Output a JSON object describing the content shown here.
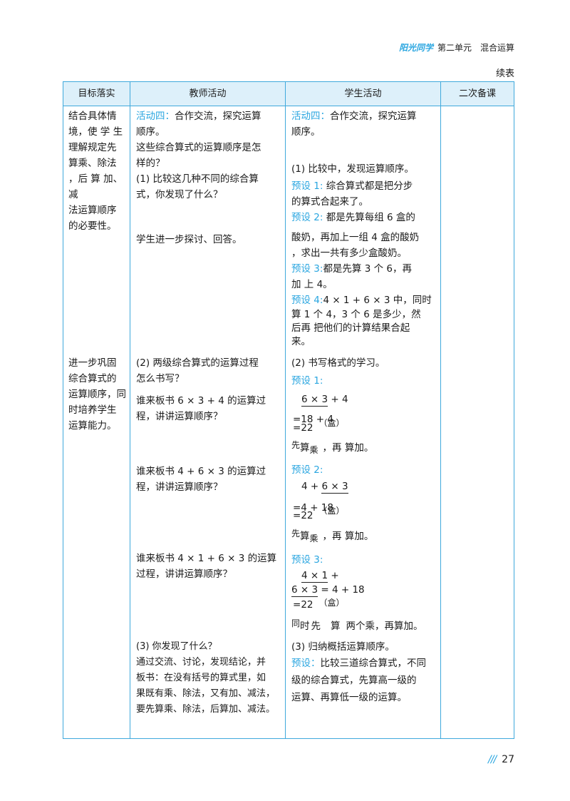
{
  "header": {
    "logo": "阳光同学",
    "title": "第二单元　混合运算"
  },
  "continued": "续表",
  "table": {
    "headers": [
      "目标落实",
      "教师活动",
      "学生活动",
      "二次备课"
    ],
    "goal1": [
      "结合具体情",
      "境，使 学 生",
      "理解规定先",
      "算乘、除法",
      "，后 算 加、",
      "减",
      "法运算顺序",
      "的必要性。"
    ],
    "goal2": [
      "进一步巩固",
      "综合算式的",
      "运算顺序，同",
      "时培养学生",
      "运算能力。"
    ],
    "teacher": {
      "act4_label": "活动四：",
      "act4_rest": "合作交流，探究运算",
      "act4_line2": "顺序。",
      "q_lines": [
        "这些综合算式的运算顺序是怎",
        "样的？"
      ],
      "q1_lines": [
        "(1) 比较这几种不同的综合算",
        "式，你发现了什么？"
      ],
      "discuss": "学生进一步探讨、回答。",
      "q2_lines": [
        "(2) 两级综合算式的运算过程",
        "怎么书写？"
      ],
      "ask1_lines": [
        "谁来板书  6 × 3 + 4 的运算过",
        "程，讲讲运算顺序？"
      ],
      "ask2_lines": [
        "谁来板书  4 + 6 ×  3  的运算过",
        "程，讲讲运算顺序？"
      ],
      "ask3_lines": [
        "谁来板书  4 × 1 + 6 ×  3  的运算",
        "过程，讲讲运算顺序？"
      ],
      "q3_lines": [
        "(3) 你发现了什么？",
        "通过交流、讨论，发现结论，并",
        "板书：在没有括号的算式里，如",
        "果既有乘、除法，又有加、减法，",
        "要先算乘、除法，后算加、减法。"
      ]
    },
    "student": {
      "act4_label": "活动四：",
      "act4_rest": "合作交流，探究运算",
      "act4_line2": "顺序。",
      "compare": "(1) 比较中，发现运算顺序。",
      "p1_label": "预设 1:",
      "p1_rest": " 综合算式都是把分步",
      "p1_line2": "的算式合起来了。",
      "p2_label": "预设 2:",
      "p2_rest": " 都是先算每组  6 盒的",
      "p2_lines": [
        "酸奶，再加上一组 4 盒的酸奶",
        "，求出一共有多少盒酸奶。"
      ],
      "p3_label": "预设 3:",
      "p3_rest": "都是先算  3 个  6，再",
      "p3_line2": "加 上 4。",
      "p4_label": "预设 4:",
      "p4_rest": "4 × 1 + 6 × 3 中，同时",
      "p4_lines": [
        "算 1 个 4，3 个  6 是多少，然",
        "后再 把他们的计算结果合起",
        "来。"
      ],
      "format": "(2) 书写格式的学习。",
      "f1_label": "预设 1:",
      "f1_expr_u": "6 × 3",
      "f1_expr_rest": " + 4",
      "f1_step": "=18 + 4",
      "f1_eq": "=",
      "f1_result": "22",
      "f1_unit": "（盒）",
      "f1_note_a": "先",
      "f1_note_b": "算",
      "f1_note_c": "乘",
      "f1_note_d": "，再 算加。",
      "f2_label": "预设 2:",
      "f2_expr_a": "4 + ",
      "f2_expr_u": "6 × 3",
      "f2_step": "=4 + 18",
      "f2_eq": "=",
      "f2_result": "22",
      "f2_unit": "（盒）",
      "f2_note_a": "先",
      "f2_note_b": "算",
      "f2_note_c": "乘",
      "f2_note_d": "，再 算加。",
      "f3_label": "预设 3:",
      "f3_expr_u1": "4 × 1",
      "f3_expr_plus": " + ",
      "f3_expr_u2": "6 × 3",
      "f3_step": " = 4 + 18",
      "f3_eq": "=",
      "f3_result": "22",
      "f3_unit": "（盒）",
      "f3_note_a": "同",
      "f3_note_b": "时",
      "f3_note_c": "先",
      "f3_note_d": "算",
      "f3_note_e": "两个乘，再算加。",
      "summary": "(3) 归纳概括运算顺序。",
      "ps_label": "预设：",
      "ps_rest": "比较三道综合算式，不同",
      "ps_lines": [
        "级的综合算式，先算高一级的",
        "运算、再算低一级的运算。"
      ]
    }
  },
  "footer": {
    "slashes": "///",
    "page": "27"
  },
  "colors": {
    "accent": "#2aa6e0",
    "border": "#3fa9dc",
    "header_bg": "#ddf0fa"
  }
}
